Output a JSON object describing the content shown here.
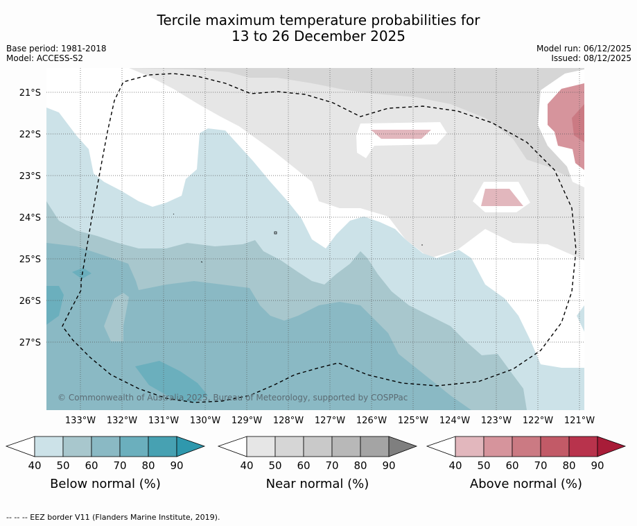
{
  "title_line1": "Tercile maximum temperature probabilities for",
  "title_line2": "13 to 26 December 2025",
  "base_period": "Base period: 1981-2018",
  "model": "Model: ACCESS-S2",
  "model_run": "Model run: 06/12/2025",
  "issued": "Issued: 08/12/2025",
  "copyright": "© Commonwealth of Australia 2025, Bureau of Meteorology, supported by COSPPac",
  "map": {
    "lat_labels": [
      "21°S",
      "22°S",
      "23°S",
      "24°S",
      "25°S",
      "26°S",
      "27°S"
    ],
    "lon_labels": [
      "133°W",
      "132°W",
      "131°W",
      "130°W",
      "129°W",
      "128°W",
      "127°W",
      "126°W",
      "125°W",
      "124°W",
      "123°W",
      "122°W",
      "121°W"
    ]
  },
  "colorbars": {
    "below": {
      "title": "Below normal (%)",
      "ticks": [
        "40",
        "50",
        "60",
        "70",
        "80",
        "90"
      ],
      "colors": [
        "#cce2e8",
        "#a8c7cd",
        "#8ab9c4",
        "#6bafbd",
        "#47a1b2",
        "#2f98ad"
      ]
    },
    "near": {
      "title": "Near normal (%)",
      "ticks": [
        "40",
        "50",
        "60",
        "70",
        "80",
        "90"
      ],
      "colors": [
        "#e6e6e6",
        "#d6d6d6",
        "#c9c9c9",
        "#b8b8b8",
        "#a4a4a4",
        "#7f7f7f"
      ]
    },
    "above": {
      "title": "Above normal (%)",
      "ticks": [
        "40",
        "50",
        "60",
        "70",
        "80",
        "90"
      ],
      "colors": [
        "#e2b7bd",
        "#d6949c",
        "#cb7a83",
        "#c25a67",
        "#b8334c",
        "#a81c38"
      ]
    }
  },
  "footer": "--  --  -- EEZ border V11 (Flanders Marine Institute, 2019)."
}
